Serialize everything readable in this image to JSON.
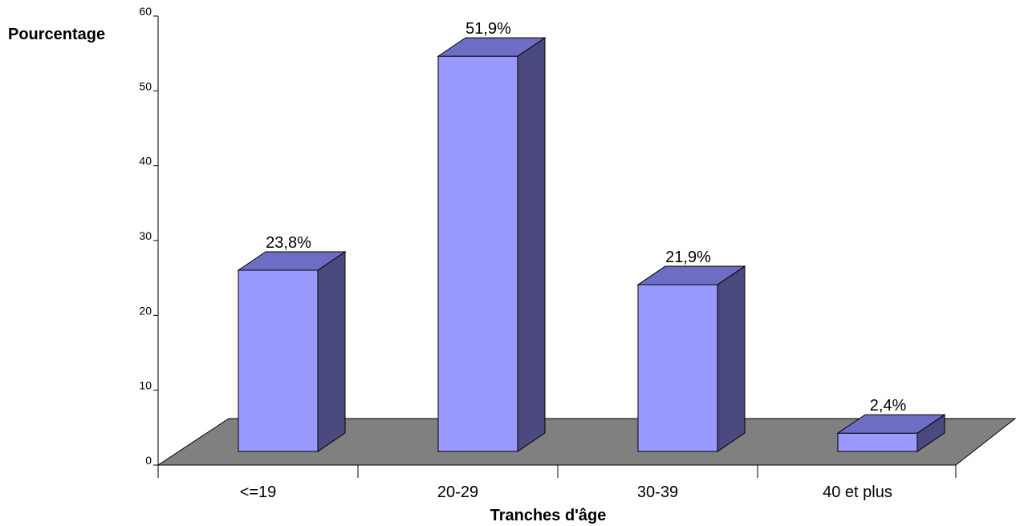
{
  "chart_data": {
    "type": "bar",
    "title": "",
    "ylabel": "Pourcentage",
    "xlabel": "Tranches d'âge",
    "categories": [
      "<=19",
      "20-29",
      "30-39",
      "40 et plus"
    ],
    "values": [
      23.8,
      51.9,
      21.9,
      2.4
    ],
    "data_labels": [
      "23,8%",
      "51,9%",
      "21,9%",
      "2,4%"
    ],
    "ylim": [
      0,
      60
    ],
    "yticks": [
      0,
      10,
      20,
      30,
      40,
      50,
      60
    ],
    "grid": false,
    "legend": "none",
    "three_d": true,
    "colors": {
      "bar_front": "#9999ff",
      "bar_top": "#6d6dc4",
      "bar_side": "#4a4a7e",
      "floor": "#808080"
    }
  }
}
